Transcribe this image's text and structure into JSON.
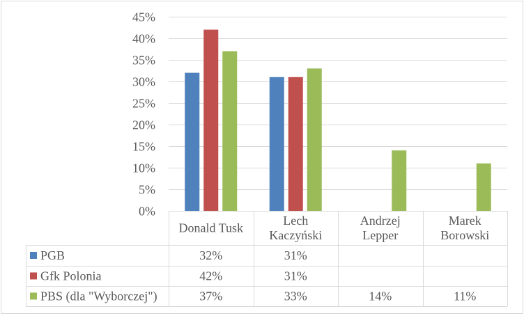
{
  "chart_data": {
    "type": "bar",
    "categories": [
      [
        "Donald Tusk"
      ],
      [
        "Lech",
        "Kaczyński"
      ],
      [
        "Andrzej",
        "Lepper"
      ],
      [
        "Marek",
        "Borowski"
      ]
    ],
    "series": [
      {
        "name": "PGB",
        "color": "#4f81bd",
        "values": [
          32,
          31,
          null,
          null
        ],
        "labels": [
          "32%",
          "31%",
          "",
          ""
        ]
      },
      {
        "name": "Gfk Polonia",
        "color": "#c0504d",
        "values": [
          42,
          31,
          null,
          null
        ],
        "labels": [
          "42%",
          "31%",
          "",
          ""
        ]
      },
      {
        "name": "PBS (dla \"Wyborczej\")",
        "color": "#9bbb59",
        "values": [
          37,
          33,
          14,
          11
        ],
        "labels": [
          "37%",
          "33%",
          "14%",
          "11%"
        ]
      }
    ],
    "y_ticks": [
      "0%",
      "5%",
      "10%",
      "15%",
      "20%",
      "25%",
      "30%",
      "35%",
      "40%",
      "45%"
    ],
    "ylim": [
      0,
      45
    ],
    "grid": true,
    "legend": "data-table"
  }
}
